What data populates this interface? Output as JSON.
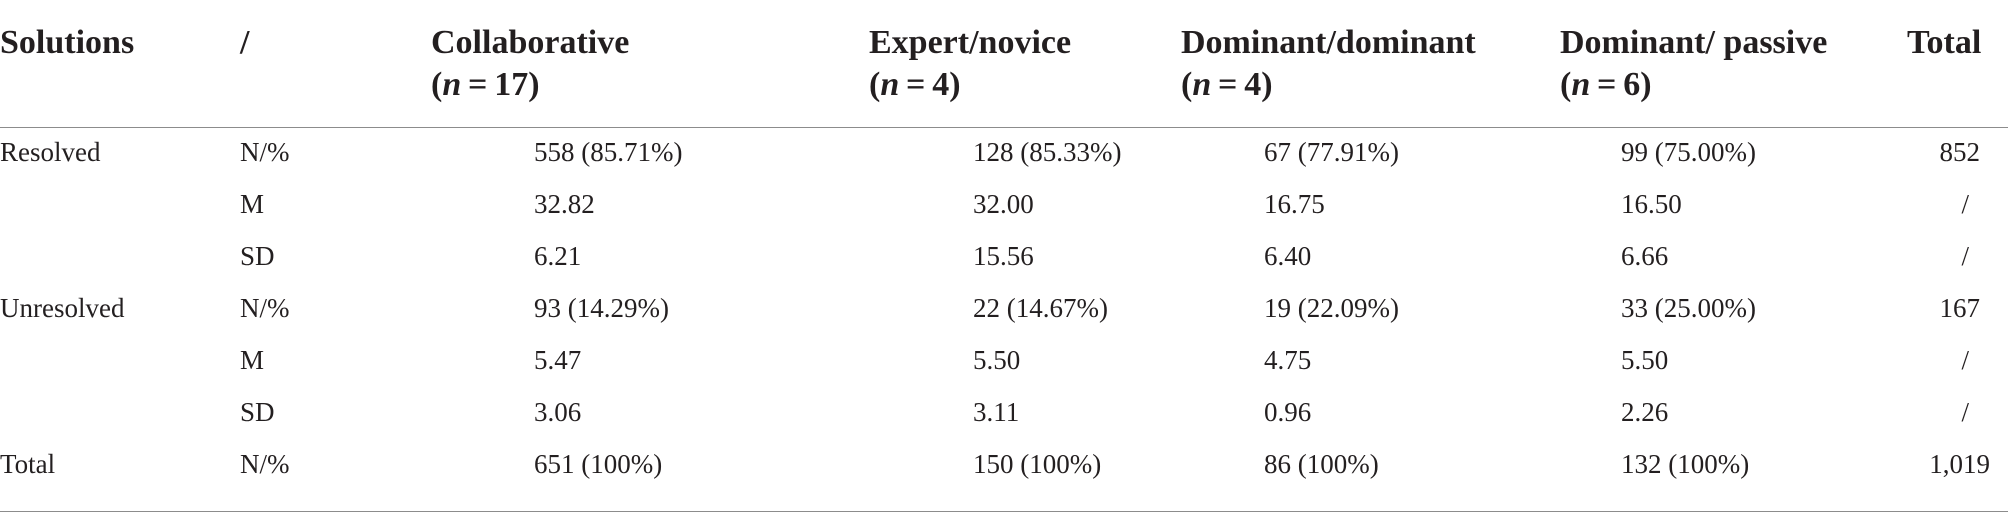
{
  "header": {
    "solutions": "Solutions",
    "slash": "/",
    "collaborative": "Collaborative",
    "collaborative_n": "(n = 17)",
    "expert_novice": "Expert/novice",
    "expert_novice_n": "(n = 4)",
    "dominant_dominant": "Dominant/dominant",
    "dominant_dominant_n": "(n = 4)",
    "dominant_passive": "Dominant/ passive",
    "dominant_passive_n": "(n = 6)",
    "total": "Total"
  },
  "rows": [
    {
      "solution": "Resolved",
      "stat": "N/%",
      "collaborative": "558 (85.71%)",
      "expert_novice": "128 (85.33%)",
      "dominant_dominant": "67 (77.91%)",
      "dominant_passive": "99 (75.00%)",
      "total": "852"
    },
    {
      "solution": "",
      "stat": "M",
      "collaborative": "32.82",
      "expert_novice": "32.00",
      "dominant_dominant": "16.75",
      "dominant_passive": "16.50",
      "total": "/"
    },
    {
      "solution": "",
      "stat": "SD",
      "collaborative": "6.21",
      "expert_novice": "15.56",
      "dominant_dominant": "6.40",
      "dominant_passive": "6.66",
      "total": "/"
    },
    {
      "solution": "Unresolved",
      "stat": "N/%",
      "collaborative": "93 (14.29%)",
      "expert_novice": "22 (14.67%)",
      "dominant_dominant": "19 (22.09%)",
      "dominant_passive": "33 (25.00%)",
      "total": "167"
    },
    {
      "solution": "",
      "stat": "M",
      "collaborative": "5.47",
      "expert_novice": "5.50",
      "dominant_dominant": "4.75",
      "dominant_passive": "5.50",
      "total": "/"
    },
    {
      "solution": "",
      "stat": "SD",
      "collaborative": "3.06",
      "expert_novice": "3.11",
      "dominant_dominant": "0.96",
      "dominant_passive": "2.26",
      "total": "/"
    },
    {
      "solution": "Total",
      "stat": "N/%",
      "collaborative": "651 (100%)",
      "expert_novice": "150 (100%)",
      "dominant_dominant": "86 (100%)",
      "dominant_passive": "132 (100%)",
      "total": "1,019"
    }
  ]
}
